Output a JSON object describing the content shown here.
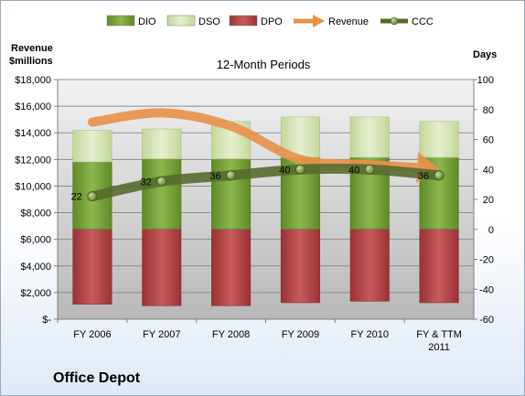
{
  "chart_data": {
    "type": "bar",
    "title": "12-Month Periods",
    "company": "Office Depot",
    "y_left_label_line1": "Revenue",
    "y_left_label_line2": "$millions",
    "y_right_label": "Days",
    "categories": [
      "FY 2006",
      "FY 2007",
      "FY 2008",
      "FY 2009",
      "FY 2010",
      "FY & TTM 2011"
    ],
    "y_left_ticks": [
      "$-",
      "$2,000",
      "$4,000",
      "$6,000",
      "$8,000",
      "$10,000",
      "$12,000",
      "$14,000",
      "$16,000",
      "$18,000"
    ],
    "y_left_range": [
      0,
      18000
    ],
    "y_right_ticks": [
      "-60",
      "-40",
      "-20",
      "0",
      "20",
      "40",
      "60",
      "80",
      "100"
    ],
    "y_right_range": [
      -60,
      100
    ],
    "legend_position": "top",
    "series": [
      {
        "name": "DIO",
        "type": "stacked-bar",
        "axis": "right",
        "color": "#77a03a",
        "values": [
          45,
          47,
          47,
          48,
          48,
          48
        ]
      },
      {
        "name": "DSO",
        "type": "stacked-bar",
        "axis": "right",
        "color": "#d7e4b4",
        "values": [
          21,
          20,
          25,
          27,
          27,
          24
        ]
      },
      {
        "name": "DPO",
        "type": "stacked-bar",
        "axis": "right",
        "color": "#b7474a",
        "values": [
          -50,
          -51,
          -51,
          -49,
          -48,
          -49
        ]
      },
      {
        "name": "Revenue",
        "type": "line",
        "axis": "left",
        "color": "#e8914a",
        "values": [
          14800,
          15500,
          14500,
          12000,
          11600,
          11300
        ]
      },
      {
        "name": "CCC",
        "type": "line",
        "axis": "right",
        "color": "#556b2e",
        "values": [
          22,
          32,
          36,
          40,
          40,
          36
        ],
        "labels": [
          "22",
          "32",
          "36",
          "40",
          "40",
          "36"
        ]
      }
    ]
  }
}
